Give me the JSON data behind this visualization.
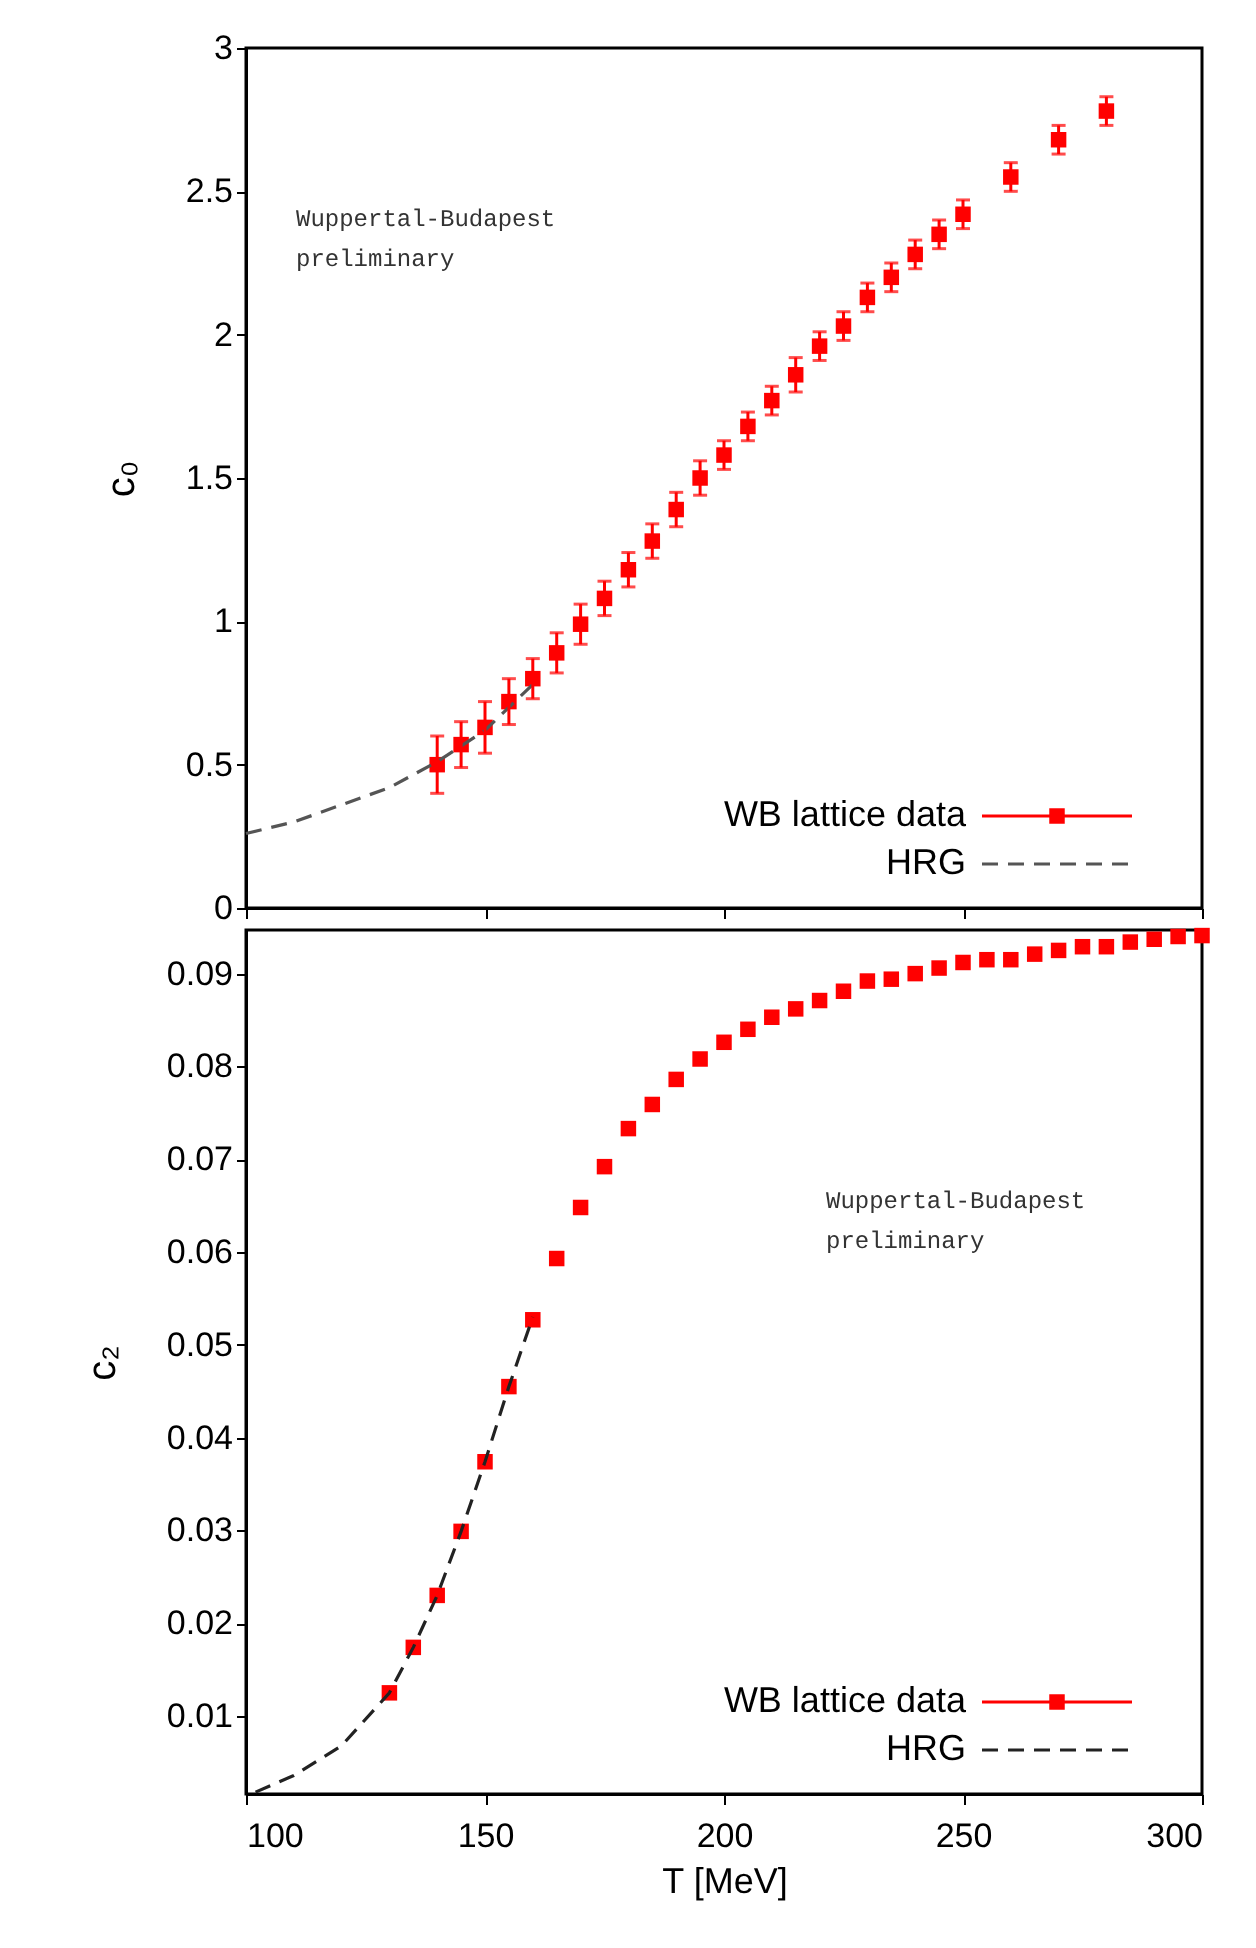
{
  "chart_data": [
    {
      "type": "scatter",
      "xlim": [
        100,
        300
      ],
      "xticks": [
        100,
        150,
        200,
        250,
        300
      ],
      "ylim": [
        0,
        3
      ],
      "yticks": [
        0,
        0.5,
        1,
        1.5,
        2,
        2.5,
        3
      ],
      "ylabel": "c₀",
      "tick_labels": "y",
      "legend": "bottom right",
      "grid": false,
      "annotations": [
        "Wuppertal-Budapest\npreliminary"
      ],
      "series": [
        {
          "name": "WB lattice data",
          "marker": "square",
          "color": "#ff0000",
          "x": [
            140,
            145,
            150,
            155,
            160,
            165,
            170,
            175,
            180,
            185,
            190,
            195,
            200,
            205,
            210,
            215,
            220,
            225,
            230,
            235,
            240,
            245,
            250,
            260,
            270,
            280
          ],
          "values": [
            0.5,
            0.57,
            0.63,
            0.72,
            0.8,
            0.89,
            0.99,
            1.08,
            1.18,
            1.28,
            1.39,
            1.5,
            1.58,
            1.68,
            1.77,
            1.86,
            1.96,
            2.03,
            2.13,
            2.2,
            2.28,
            2.35,
            2.42,
            2.55,
            2.68,
            2.78
          ],
          "errors": [
            0.1,
            0.08,
            0.09,
            0.08,
            0.07,
            0.07,
            0.07,
            0.06,
            0.06,
            0.06,
            0.06,
            0.06,
            0.05,
            0.05,
            0.05,
            0.06,
            0.05,
            0.05,
            0.05,
            0.05,
            0.05,
            0.05,
            0.05,
            0.05,
            0.05,
            0.05
          ]
        },
        {
          "name": "HRG",
          "type": "line",
          "line_style": "dashed",
          "color": "#555555",
          "x": [
            100,
            110,
            120,
            130,
            140,
            150,
            160
          ],
          "values": [
            0.26,
            0.3,
            0.36,
            0.42,
            0.51,
            0.62,
            0.78
          ]
        }
      ]
    },
    {
      "type": "scatter",
      "xlim": [
        100,
        300
      ],
      "xticks": [
        100,
        150,
        200,
        250,
        300
      ],
      "ylim": [
        0.0016,
        0.0947
      ],
      "yticks": [
        0.01,
        0.02,
        0.03,
        0.04,
        0.05,
        0.06,
        0.07,
        0.08,
        0.09
      ],
      "xlabel": "T [MeV]",
      "ylabel": "c₂",
      "legend": "bottom right",
      "grid": false,
      "annotations": [
        "Wuppertal-Budapest\npreliminary"
      ],
      "series": [
        {
          "name": "WB lattice data",
          "marker": "square",
          "color": "#ff0000",
          "x": [
            130,
            135,
            140,
            145,
            150,
            155,
            160,
            165,
            170,
            175,
            180,
            185,
            190,
            195,
            200,
            205,
            210,
            215,
            220,
            225,
            230,
            235,
            240,
            245,
            250,
            255,
            260,
            265,
            270,
            275,
            280,
            285,
            290,
            295,
            300
          ],
          "values": [
            0.0125,
            0.0174,
            0.023,
            0.0299,
            0.0374,
            0.0455,
            0.0527,
            0.0593,
            0.0648,
            0.0692,
            0.0733,
            0.0759,
            0.0786,
            0.0808,
            0.0826,
            0.084,
            0.0853,
            0.0862,
            0.0871,
            0.0881,
            0.0892,
            0.0894,
            0.09,
            0.0906,
            0.0912,
            0.0915,
            0.0915,
            0.0921,
            0.0925,
            0.0929,
            0.0929,
            0.0934,
            0.0937,
            0.094,
            0.0941
          ]
        },
        {
          "name": "HRG",
          "type": "line",
          "line_style": "dashed",
          "color": "#222222",
          "x": [
            102,
            110,
            120,
            130,
            135,
            140,
            145,
            150,
            155,
            160
          ],
          "values": [
            0.0018,
            0.0036,
            0.0068,
            0.0125,
            0.0174,
            0.023,
            0.0299,
            0.0374,
            0.0455,
            0.053
          ]
        }
      ]
    }
  ]
}
